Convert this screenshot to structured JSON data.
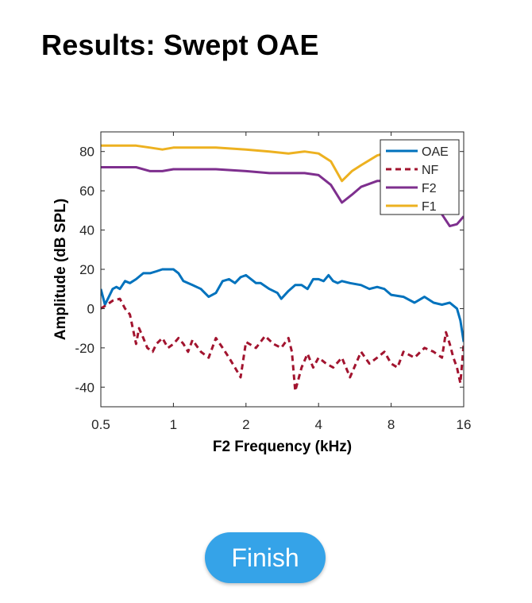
{
  "page": {
    "title": "Results: Swept OAE"
  },
  "finish_button": {
    "label": "Finish",
    "color": "#35a3e8"
  },
  "chart_data": {
    "type": "line",
    "x_scale": "log2",
    "xlabel": "F2 Frequency (kHz)",
    "ylabel": "Amplitude (dB SPL)",
    "xlim": [
      0.5,
      16
    ],
    "ylim": [
      -50,
      90
    ],
    "xticks": [
      0.5,
      1,
      2,
      4,
      8,
      16
    ],
    "xtick_labels": [
      "0.5",
      "1",
      "2",
      "4",
      "8",
      "16"
    ],
    "yticks": [
      -40,
      -20,
      0,
      20,
      40,
      60,
      80
    ],
    "ytick_labels": [
      "-40",
      "-20",
      "0",
      "20",
      "40",
      "60",
      "80"
    ],
    "grid": false,
    "legend_position": "top-right",
    "series": [
      {
        "name": "OAE",
        "color": "#0072bd",
        "style": "solid",
        "x": [
          0.5,
          0.52,
          0.54,
          0.56,
          0.58,
          0.6,
          0.63,
          0.66,
          0.7,
          0.75,
          0.8,
          0.85,
          0.9,
          0.95,
          1.0,
          1.05,
          1.1,
          1.2,
          1.3,
          1.4,
          1.5,
          1.6,
          1.7,
          1.8,
          1.9,
          2.0,
          2.1,
          2.2,
          2.3,
          2.5,
          2.7,
          2.8,
          3.0,
          3.2,
          3.4,
          3.6,
          3.8,
          4.0,
          4.2,
          4.4,
          4.6,
          4.8,
          5.0,
          5.4,
          6.0,
          6.5,
          7.0,
          7.5,
          8.0,
          9.0,
          10.0,
          11.0,
          12.0,
          13.0,
          14.0,
          15.0,
          15.5,
          16.0
        ],
        "y": [
          10,
          2,
          6,
          10,
          11,
          10,
          14,
          13,
          15,
          18,
          18,
          19,
          20,
          20,
          20,
          18,
          14,
          12,
          10,
          6,
          8,
          14,
          15,
          13,
          16,
          17,
          15,
          13,
          13,
          10,
          8,
          5,
          9,
          12,
          12,
          10,
          15,
          15,
          14,
          17,
          14,
          13,
          14,
          13,
          12,
          10,
          11,
          10,
          7,
          6,
          3,
          6,
          3,
          2,
          3,
          0,
          -6,
          -17
        ]
      },
      {
        "name": "NF",
        "color": "#a2142f",
        "style": "dashed",
        "x": [
          0.5,
          0.53,
          0.56,
          0.6,
          0.63,
          0.66,
          0.7,
          0.72,
          0.75,
          0.78,
          0.82,
          0.85,
          0.9,
          0.95,
          1.0,
          1.05,
          1.1,
          1.15,
          1.2,
          1.3,
          1.4,
          1.5,
          1.6,
          1.7,
          1.8,
          1.9,
          2.0,
          2.2,
          2.4,
          2.6,
          2.8,
          3.0,
          3.1,
          3.2,
          3.4,
          3.6,
          3.8,
          4.0,
          4.3,
          4.6,
          5.0,
          5.4,
          6.0,
          6.5,
          7.0,
          7.5,
          8.0,
          8.5,
          9.0,
          10.0,
          11.0,
          12.0,
          13.0,
          13.5,
          14.0,
          14.5,
          15.0,
          15.5,
          16.0
        ],
        "y": [
          0,
          2,
          4,
          5,
          0,
          -3,
          -18,
          -10,
          -15,
          -20,
          -22,
          -18,
          -15,
          -20,
          -18,
          -15,
          -18,
          -22,
          -16,
          -22,
          -25,
          -15,
          -20,
          -25,
          -30,
          -35,
          -17,
          -20,
          -14,
          -18,
          -20,
          -15,
          -22,
          -42,
          -30,
          -23,
          -30,
          -25,
          -28,
          -30,
          -25,
          -35,
          -22,
          -28,
          -25,
          -22,
          -28,
          -30,
          -22,
          -25,
          -20,
          -22,
          -25,
          -12,
          -18,
          -25,
          -30,
          -38,
          -18
        ]
      },
      {
        "name": "F2",
        "color": "#7e2f8e",
        "style": "solid",
        "x": [
          0.5,
          0.6,
          0.7,
          0.8,
          0.9,
          1.0,
          1.2,
          1.5,
          2.0,
          2.5,
          3.0,
          3.5,
          4.0,
          4.5,
          5.0,
          5.5,
          6.0,
          7.0,
          8.0,
          9.0,
          10.0,
          11.0,
          12.0,
          13.0,
          14.0,
          15.0,
          16.0
        ],
        "y": [
          72,
          72,
          72,
          70,
          70,
          71,
          71,
          71,
          70,
          69,
          69,
          69,
          68,
          63,
          54,
          58,
          62,
          65,
          65,
          68,
          66,
          60,
          58,
          48,
          42,
          43,
          47
        ]
      },
      {
        "name": "F1",
        "color": "#edb120",
        "style": "solid",
        "x": [
          0.5,
          0.6,
          0.7,
          0.8,
          0.9,
          1.0,
          1.2,
          1.5,
          2.0,
          2.5,
          3.0,
          3.5,
          4.0,
          4.5,
          5.0,
          5.5,
          6.0,
          7.0,
          7.5
        ],
        "y": [
          83,
          83,
          83,
          82,
          81,
          82,
          82,
          82,
          81,
          80,
          79,
          80,
          79,
          75,
          65,
          70,
          73,
          78,
          79
        ]
      }
    ]
  }
}
